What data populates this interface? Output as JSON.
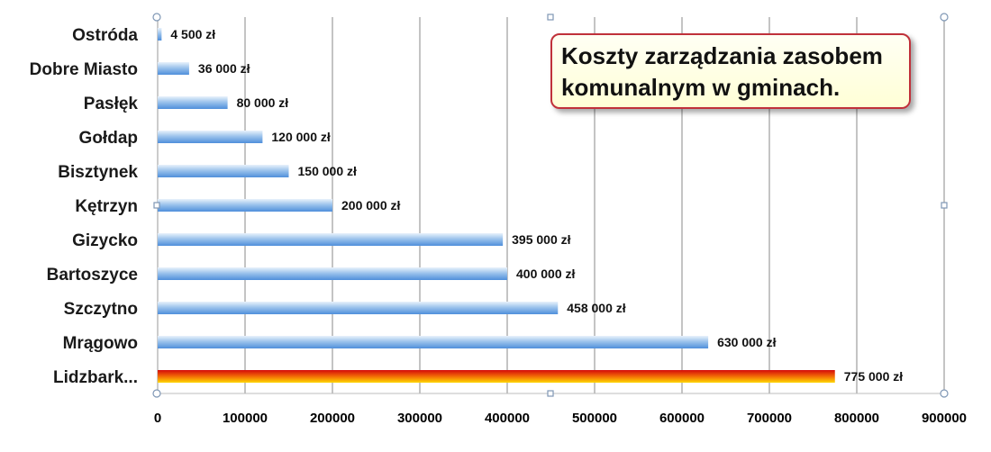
{
  "chart_data": {
    "type": "bar",
    "orientation": "horizontal",
    "title": "Koszty zarządzania zasobem komunalnym w gminach.",
    "categories": [
      "Ostróda",
      "Dobre Miasto",
      "Pasłęk",
      "Gołdap",
      "Bisztynek",
      "Kętrzyn",
      "Gizycko",
      "Bartoszyce",
      "Szczytno",
      "Mrągowo",
      "Lidzbark..."
    ],
    "values": [
      4500,
      36000,
      80000,
      120000,
      150000,
      200000,
      395000,
      400000,
      458000,
      630000,
      775000
    ],
    "data_labels": [
      "4 500 zł",
      "36 000 zł",
      "80 000 zł",
      "120 000 zł",
      "150 000 zł",
      "200 000 zł",
      "395 000 zł",
      "400 000 zł",
      "458 000 zł",
      "630 000 zł",
      "775 000 zł"
    ],
    "highlighted_index": 10,
    "xlim": [
      0,
      900000
    ],
    "x_ticks": [
      0,
      100000,
      200000,
      300000,
      400000,
      500000,
      600000,
      700000,
      800000,
      900000
    ],
    "x_tick_labels": [
      "0",
      "100000",
      "200000",
      "300000",
      "400000",
      "500000",
      "600000",
      "700000",
      "800000",
      "900000"
    ],
    "grid": "vertical",
    "colors": {
      "bar": "#5b9bd5",
      "bar_light": "#cfe3f7",
      "highlight_top": "#e8140c",
      "highlight_bottom": "#ffd200",
      "grid": "#888888"
    }
  }
}
